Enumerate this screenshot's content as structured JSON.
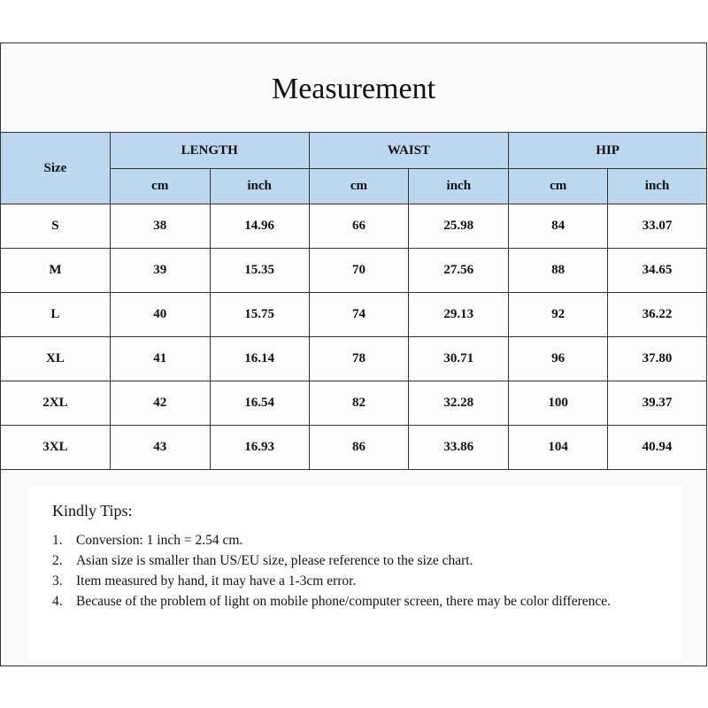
{
  "title": "Measurement",
  "table": {
    "size_header": "Size",
    "groups": [
      "LENGTH",
      "WAIST",
      "HIP"
    ],
    "units": [
      "cm",
      "inch",
      "cm",
      "inch",
      "cm",
      "inch"
    ],
    "rows": [
      [
        "S",
        "38",
        "14.96",
        "66",
        "25.98",
        "84",
        "33.07"
      ],
      [
        "M",
        "39",
        "15.35",
        "70",
        "27.56",
        "88",
        "34.65"
      ],
      [
        "L",
        "40",
        "15.75",
        "74",
        "29.13",
        "92",
        "36.22"
      ],
      [
        "XL",
        "41",
        "16.14",
        "78",
        "30.71",
        "96",
        "37.80"
      ],
      [
        "2XL",
        "42",
        "16.54",
        "82",
        "32.28",
        "100",
        "39.37"
      ],
      [
        "3XL",
        "43",
        "16.93",
        "86",
        "33.86",
        "104",
        "40.94"
      ]
    ]
  },
  "tips": {
    "heading": "Kindly Tips:",
    "items": [
      {
        "num": "1.",
        "text": "Conversion: 1 inch = 2.54 cm."
      },
      {
        "num": "2.",
        "text": "Asian size is smaller than US/EU size, please reference to the size chart."
      },
      {
        "num": "3.",
        "text": "Item measured by hand, it may have a 1-3cm error."
      },
      {
        "num": "4.",
        "text": "Because of the problem of light on mobile phone/computer screen, there may be color difference."
      }
    ]
  },
  "colors": {
    "header_bg": "#bdd7ee",
    "border": "#333333"
  }
}
